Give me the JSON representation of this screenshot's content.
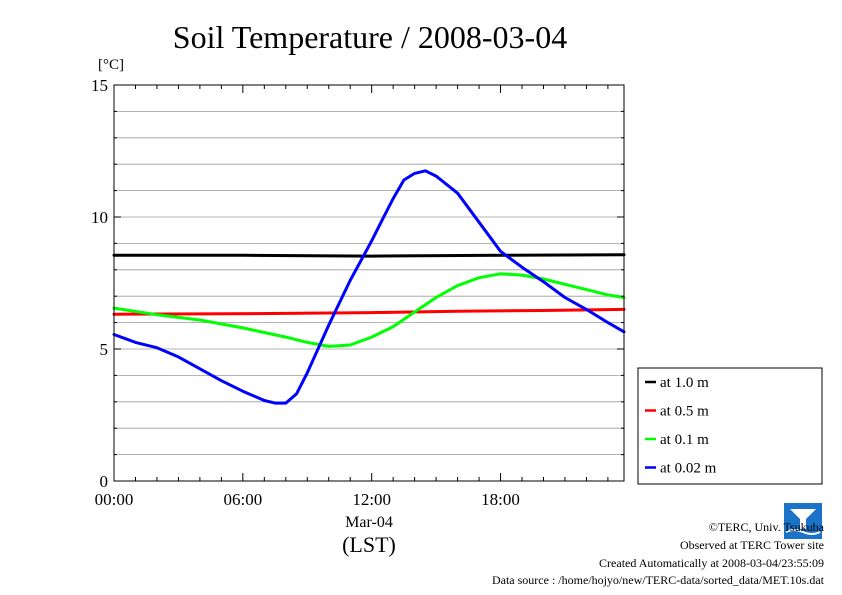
{
  "chart_data": {
    "type": "line",
    "title": "Soil Temperature / 2008-03-04",
    "ylabel": "[°C]",
    "xlabel": "(LST)",
    "date_label": "Mar-04",
    "ylim": [
      0,
      15
    ],
    "xlim": [
      0,
      23.75
    ],
    "yticks": [
      0,
      5,
      10,
      15
    ],
    "xticks": [
      {
        "value": 0,
        "label": "00:00"
      },
      {
        "value": 6,
        "label": "06:00"
      },
      {
        "value": 12,
        "label": "12:00"
      },
      {
        "value": 18,
        "label": "18:00"
      }
    ],
    "grid": true,
    "legend_position": "right-bottom",
    "series": [
      {
        "name": "at 1.0 m",
        "color": "#000000",
        "x": [
          0,
          6,
          12,
          18,
          23.75
        ],
        "y": [
          8.55,
          8.55,
          8.52,
          8.55,
          8.57
        ]
      },
      {
        "name": "at 0.5 m",
        "color": "#ff0000",
        "x": [
          0,
          4,
          8,
          12,
          16,
          20,
          23.75
        ],
        "y": [
          6.32,
          6.33,
          6.35,
          6.38,
          6.43,
          6.46,
          6.5
        ]
      },
      {
        "name": "at 0.1 m",
        "color": "#00ff00",
        "x": [
          0,
          2,
          4,
          6,
          8,
          9,
          10,
          11,
          12,
          13,
          14,
          15,
          16,
          17,
          18,
          19,
          20,
          21,
          22,
          23,
          23.75
        ],
        "y": [
          6.55,
          6.3,
          6.1,
          5.8,
          5.45,
          5.25,
          5.1,
          5.15,
          5.45,
          5.85,
          6.4,
          6.95,
          7.4,
          7.7,
          7.85,
          7.8,
          7.65,
          7.45,
          7.25,
          7.05,
          6.95
        ]
      },
      {
        "name": "at 0.02 m",
        "color": "#0000ff",
        "x": [
          0,
          1,
          2,
          3,
          4,
          5,
          6,
          7,
          7.5,
          8,
          8.5,
          9,
          10,
          11,
          12,
          12.5,
          13,
          13.5,
          14,
          14.5,
          15,
          16,
          17,
          18,
          19,
          20,
          21,
          22,
          23,
          23.75
        ],
        "y": [
          5.55,
          5.25,
          5.05,
          4.7,
          4.25,
          3.8,
          3.4,
          3.05,
          2.95,
          2.95,
          3.3,
          4.1,
          5.9,
          7.6,
          9.1,
          9.9,
          10.7,
          11.4,
          11.65,
          11.75,
          11.55,
          10.9,
          9.8,
          8.7,
          8.1,
          7.55,
          6.95,
          6.5,
          6.0,
          5.65
        ]
      }
    ]
  },
  "credits": {
    "copyright": "©TERC, Univ. Tsukuba",
    "observed": "Observed at TERC Tower site",
    "created": "Created Automatically at 2008-03-04/23:55:09",
    "source": "Data source : /home/hojyo/new/TERC-data/sorted_data/MET.10s.dat",
    "logo_text": "TERC"
  }
}
